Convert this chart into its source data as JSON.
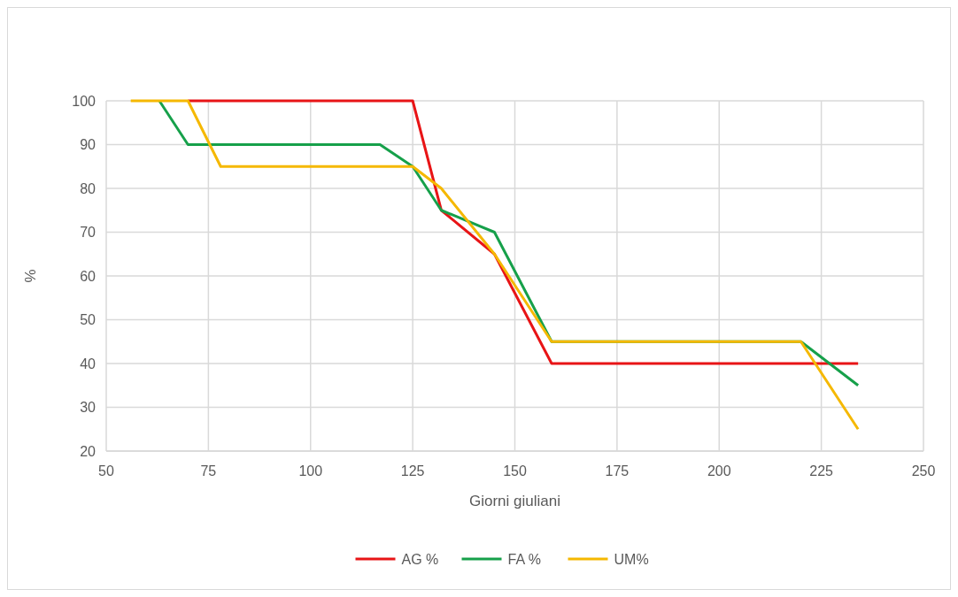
{
  "chart_data": {
    "type": "line",
    "xlabel": "Giorni giuliani",
    "ylabel": "%",
    "xlim": [
      50,
      250
    ],
    "xticks": [
      50,
      75,
      100,
      125,
      150,
      175,
      200,
      225,
      250
    ],
    "ylim": [
      20,
      100
    ],
    "yticks": [
      20,
      30,
      40,
      50,
      60,
      70,
      80,
      90,
      100
    ],
    "grid": true,
    "legend": "bottom",
    "line_style": "solid",
    "series": [
      {
        "name": "AG %",
        "color": "#e81416",
        "x": [
          70,
          125,
          132,
          145,
          159,
          234
        ],
        "values": [
          100,
          100,
          75,
          65,
          40,
          40
        ]
      },
      {
        "name": "FA %",
        "color": "#16a04a",
        "x": [
          63,
          70,
          117,
          125,
          132,
          145,
          159,
          220,
          234
        ],
        "values": [
          100,
          90,
          90,
          85,
          75,
          70,
          45,
          45,
          35
        ]
      },
      {
        "name": "UM%",
        "color": "#f5b800",
        "x": [
          56,
          70,
          78,
          125,
          132,
          145,
          159,
          220,
          234
        ],
        "values": [
          100,
          100,
          85,
          85,
          80,
          65,
          45,
          45,
          25
        ]
      }
    ]
  }
}
